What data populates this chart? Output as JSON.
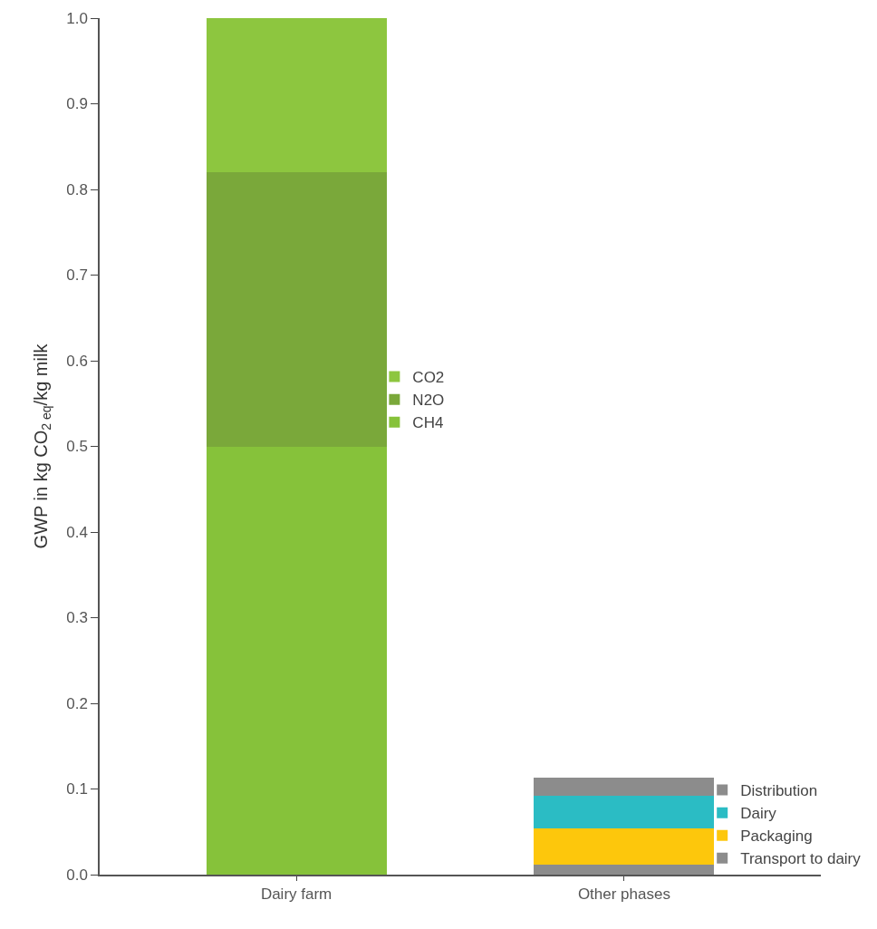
{
  "chart_data": {
    "type": "bar",
    "stacked": true,
    "ylabel": "GWP in kg CO$_{2 eq}$/kg milk",
    "categories": [
      "Dairy farm",
      "Other phases"
    ],
    "series": [
      {
        "name": "CH4",
        "color": "#86c23a",
        "values": [
          0.5,
          null
        ]
      },
      {
        "name": "N2O",
        "color": "#7aa83a",
        "values": [
          0.32,
          null
        ]
      },
      {
        "name": "CO2",
        "color": "#8dc63f",
        "values": [
          0.18,
          null
        ]
      },
      {
        "name": "Transport to dairy",
        "color": "#8c8c8c",
        "values": [
          null,
          0.012
        ]
      },
      {
        "name": "Packaging",
        "color": "#fdc70c",
        "values": [
          null,
          0.042
        ]
      },
      {
        "name": "Dairy",
        "color": "#2bbcc4",
        "values": [
          null,
          0.038
        ]
      },
      {
        "name": "Distribution",
        "color": "#8c8c8c",
        "values": [
          null,
          0.021
        ]
      }
    ],
    "ylim": [
      0,
      1.0
    ],
    "yticks": [
      {
        "value": 0,
        "label": "0.0"
      },
      0.1,
      0.2,
      0.3,
      0.4,
      0.5,
      0.6,
      0.7,
      0.8,
      0.9,
      {
        "value": 1,
        "label": "1.0"
      }
    ],
    "legend": "right"
  }
}
